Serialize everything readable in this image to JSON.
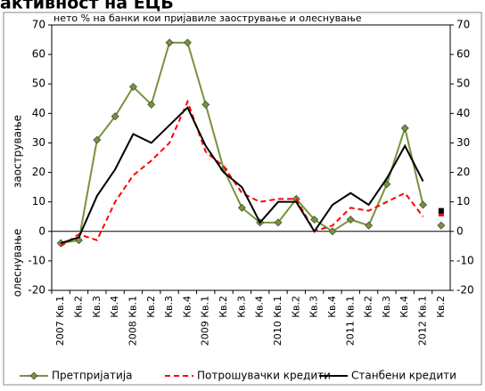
{
  "chart_data": {
    "type": "line",
    "title": "активност на ЕЦБ",
    "subtitle": "нето % на банки кои пријавиле заострување и олеснување",
    "y_label_top": "заострување",
    "y_label_bottom": "олеснување",
    "categories": [
      "2007 Кв.1",
      "Кв.2",
      "Кв.3",
      "Кв.4",
      "2008 Кв.1",
      "Кв.2",
      "Кв.3",
      "Кв.4",
      "2009 Кв.1",
      "Кв.2",
      "Кв.3",
      "Кв.4",
      "2010 Кв.1",
      "Кв.2",
      "Кв.3",
      "Кв.4",
      "2011 Кв.1",
      "Кв.2",
      "Кв.3",
      "Кв.4",
      "2012 Кв.1",
      "Кв.2"
    ],
    "series": [
      {
        "name": "Претпријатија",
        "color": "#77933c",
        "values": [
          -4,
          -3,
          31,
          39,
          49,
          43,
          64,
          64,
          43,
          21,
          8,
          3,
          3,
          11,
          4,
          0,
          4,
          2,
          16,
          35,
          9,
          2
        ]
      },
      {
        "name": "Потрошувачки кредити",
        "color": "#ff0000",
        "values": [
          -5,
          -1,
          -3,
          10,
          19,
          24,
          30,
          44,
          27,
          22,
          13,
          10,
          11,
          11,
          0,
          2,
          8,
          7,
          10,
          13,
          5,
          6
        ]
      },
      {
        "name": "Станбени кредити",
        "color": "#000000",
        "values": [
          -4,
          -2,
          12,
          21,
          33,
          30,
          36,
          42,
          29,
          20,
          15,
          3,
          10,
          10,
          0,
          9,
          13,
          9,
          18,
          29,
          17,
          7
        ]
      }
    ],
    "ylim": [
      -20,
      70
    ],
    "yticks": [
      -20,
      -10,
      0,
      10,
      20,
      30,
      40,
      50,
      60,
      70
    ]
  }
}
